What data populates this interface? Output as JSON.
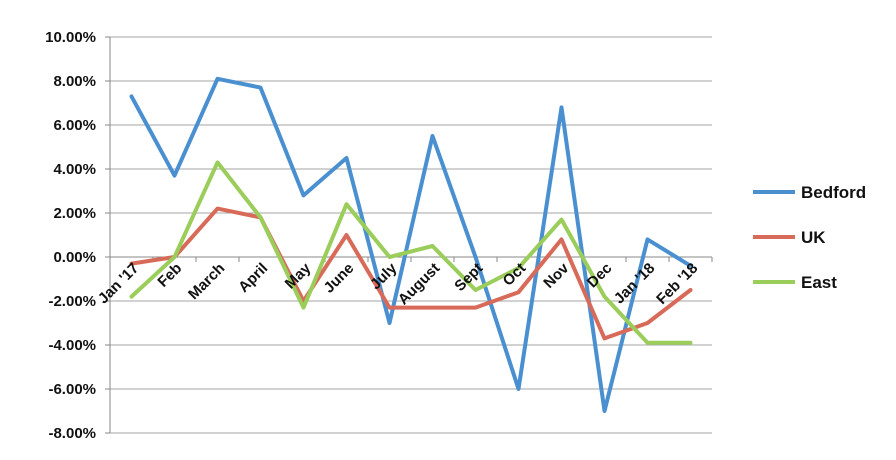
{
  "chart_data": {
    "type": "line",
    "categories": [
      "Jan '17",
      "Feb",
      "March",
      "April",
      "May",
      "June",
      "July",
      "August",
      "Sept",
      "Oct",
      "Nov",
      "Dec",
      "Jan '18",
      "Feb '18"
    ],
    "series": [
      {
        "name": "Bedford",
        "color": "#4A90D0",
        "values": [
          7.3,
          3.7,
          8.1,
          7.7,
          2.8,
          4.5,
          -3.0,
          5.5,
          0.0,
          -6.0,
          6.8,
          -7.0,
          0.8,
          -0.4
        ]
      },
      {
        "name": "UK",
        "color": "#D86A5A",
        "values": [
          -0.3,
          0.0,
          2.2,
          1.8,
          -2.0,
          1.0,
          -2.3,
          -2.3,
          -2.3,
          -1.6,
          0.8,
          -3.7,
          -3.0,
          -1.5
        ]
      },
      {
        "name": "East",
        "color": "#9ACD5A",
        "values": [
          -1.8,
          0.0,
          4.3,
          1.8,
          -2.3,
          2.4,
          0.0,
          0.5,
          -1.5,
          -0.5,
          1.7,
          -1.8,
          -3.9,
          -3.9
        ]
      }
    ],
    "y_ticks": [
      "10.00%",
      "8.00%",
      "6.00%",
      "4.00%",
      "2.00%",
      "0.00%",
      "-2.00%",
      "-4.00%",
      "-6.00%",
      "-8.00%"
    ],
    "ylim": [
      -8,
      10
    ],
    "y_tick_step": 2,
    "grid": true,
    "legend_position": "right",
    "title": "",
    "xlabel": "",
    "ylabel": ""
  }
}
